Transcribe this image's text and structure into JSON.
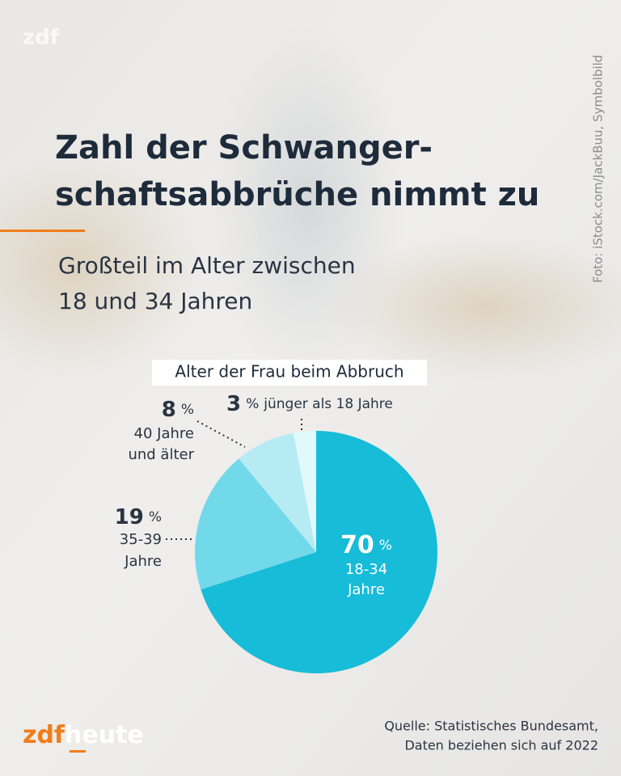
{
  "chart_data": {
    "type": "pie",
    "brand_top": "zdf",
    "photo_credit": "Foto: iStock.com/JackBuu, Symbolbild",
    "title": [
      "Zahl der Schwanger-",
      "schaftsabbrüche nimmt zu"
    ],
    "subtitle": [
      "Großteil im Alter zwischen",
      "18 und 34 Jahren"
    ],
    "chart_label": "Alter der Frau beim Abbruch",
    "unit": "%",
    "categories": [
      [
        "18-34",
        "Jahre"
      ],
      [
        "35-39",
        "Jahre"
      ],
      [
        "40 Jahre",
        "und älter"
      ],
      [
        "jünger als 18 Jahre"
      ]
    ],
    "values": [
      70,
      19,
      8,
      3
    ],
    "colors": [
      "#16bcd8",
      "#72d9ea",
      "#b6ebf4",
      "#e2f9fc"
    ],
    "logo": [
      "zdf",
      "heute"
    ],
    "source": [
      "Quelle: Statistisches Bundesamt,",
      "Daten beziehen sich auf 2022"
    ]
  }
}
